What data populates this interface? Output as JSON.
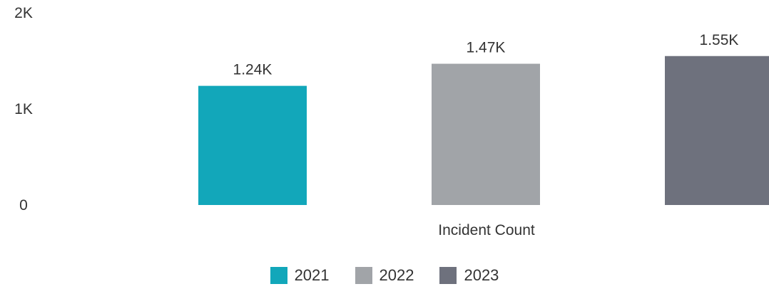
{
  "chart_data": {
    "type": "bar",
    "categories": [
      "Incident Count"
    ],
    "series": [
      {
        "name": "2021",
        "values": [
          1240
        ],
        "label": "1.24K",
        "color": "#12A7BA"
      },
      {
        "name": "2022",
        "values": [
          1470
        ],
        "label": "1.47K",
        "color": "#A1A4A8"
      },
      {
        "name": "2023",
        "values": [
          1550
        ],
        "label": "1.55K",
        "color": "#6E717D"
      }
    ],
    "title": "",
    "xlabel": "Incident Count",
    "ylabel": "",
    "ylim": [
      0,
      2000
    ],
    "yticks": [
      {
        "value": 0,
        "label": "0"
      },
      {
        "value": 1000,
        "label": "1K"
      },
      {
        "value": 2000,
        "label": "2K"
      }
    ],
    "grid": false,
    "legend_position": "bottom-center"
  }
}
